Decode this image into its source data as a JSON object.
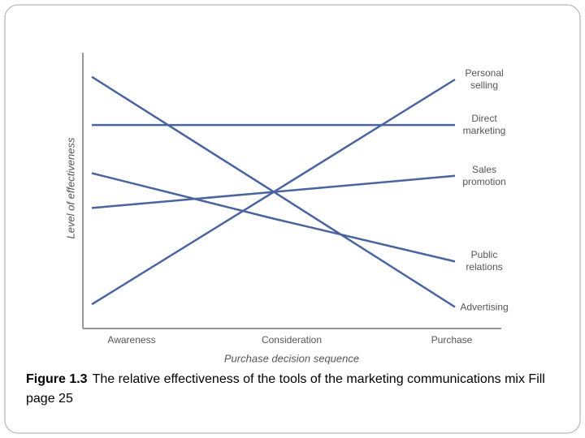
{
  "chart_data": {
    "type": "line",
    "x_label": "Purchase decision sequence",
    "y_label": "Level of effectiveness",
    "categories": [
      "Awareness",
      "Consideration",
      "Purchase"
    ],
    "ylim": [
      0,
      100
    ],
    "series": [
      {
        "name": "Personal selling",
        "color": "#4a64a0",
        "values": [
          6,
          48,
          90
        ]
      },
      {
        "name": "Direct marketing",
        "color": "#4a64a0",
        "values": [
          73,
          73,
          73
        ]
      },
      {
        "name": "Sales promotion",
        "color": "#4a64a0",
        "values": [
          42,
          48,
          54
        ]
      },
      {
        "name": "Public relations",
        "color": "#4a64a0",
        "values": [
          55,
          38,
          22
        ]
      },
      {
        "name": "Advertising",
        "color": "#4a64a0",
        "values": [
          91,
          48,
          5
        ]
      }
    ]
  },
  "caption": {
    "label": "Figure 1.3",
    "text": "The relative effectiveness of the tools of the marketing communications mix Fill page 25"
  }
}
